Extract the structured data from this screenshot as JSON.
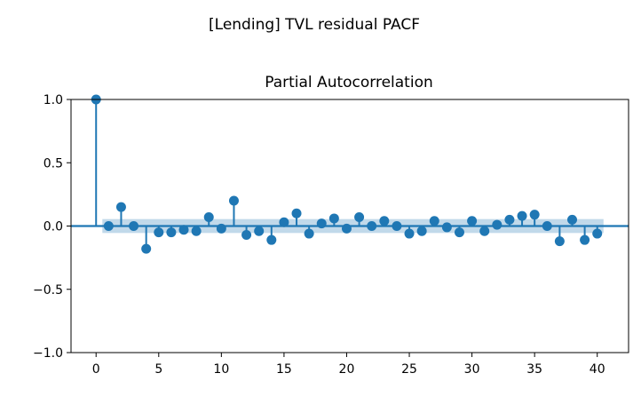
{
  "figure": {
    "suptitle": "[Lending] TVL residual PACF",
    "axes_title": "Partial Autocorrelation"
  },
  "chart_data": {
    "type": "stem",
    "title": "Partial Autocorrelation",
    "xlim": [
      -2,
      42.5
    ],
    "ylim": [
      -1.0,
      1.0
    ],
    "xticks": [
      0,
      5,
      10,
      15,
      20,
      25,
      30,
      35,
      40
    ],
    "xtick_labels": [
      "0",
      "5",
      "10",
      "15",
      "20",
      "25",
      "30",
      "35",
      "40"
    ],
    "yticks": [
      1.0,
      0.5,
      0.0,
      -0.5,
      -1.0
    ],
    "ytick_labels": [
      "1.0",
      "0.5",
      "0.0",
      "−0.5",
      "−1.0"
    ],
    "lags": [
      0,
      1,
      2,
      3,
      4,
      5,
      6,
      7,
      8,
      9,
      10,
      11,
      12,
      13,
      14,
      15,
      16,
      17,
      18,
      19,
      20,
      21,
      22,
      23,
      24,
      25,
      26,
      27,
      28,
      29,
      30,
      31,
      32,
      33,
      34,
      35,
      36,
      37,
      38,
      39,
      40
    ],
    "values": [
      1.0,
      0.0,
      0.15,
      0.0,
      -0.18,
      -0.05,
      -0.05,
      -0.03,
      -0.04,
      0.07,
      -0.02,
      0.2,
      -0.07,
      -0.04,
      -0.11,
      0.03,
      0.1,
      -0.06,
      0.02,
      0.06,
      -0.02,
      0.07,
      0.0,
      0.04,
      0.0,
      -0.06,
      -0.04,
      0.04,
      -0.01,
      -0.05,
      0.04,
      -0.04,
      0.01,
      0.05,
      0.08,
      0.09,
      0.0,
      -0.12,
      0.05,
      -0.11,
      -0.06
    ],
    "confidence_band": {
      "from_lag": 0.5,
      "to_lag": 40.5,
      "lower": -0.055,
      "upper": 0.055
    },
    "colors": {
      "stem": "#1f77b4",
      "band": "#1f77b4",
      "zero_line": "#1f77b4"
    }
  }
}
